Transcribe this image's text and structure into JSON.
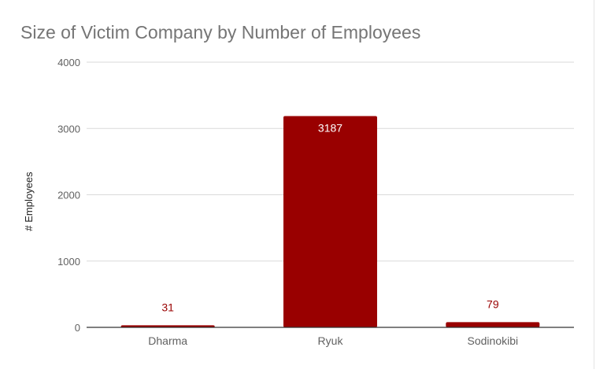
{
  "chart_data": {
    "type": "bar",
    "title": "Size of Victim Company by Number of Employees",
    "xlabel": "",
    "ylabel": "# Employees",
    "categories": [
      "Dharma",
      "Ryuk",
      "Sodinokibi"
    ],
    "values": [
      31,
      3187,
      79
    ],
    "ylim": [
      0,
      4000
    ],
    "yticks": [
      0,
      1000,
      2000,
      3000,
      4000
    ],
    "grid": true,
    "legend": "none",
    "colors": {
      "bar": "#990000",
      "label_outside": "#990000",
      "label_inside": "#ffffff",
      "title": "#757575",
      "tick": "#616161",
      "grid": "#dadada",
      "axis": "#333333"
    }
  }
}
